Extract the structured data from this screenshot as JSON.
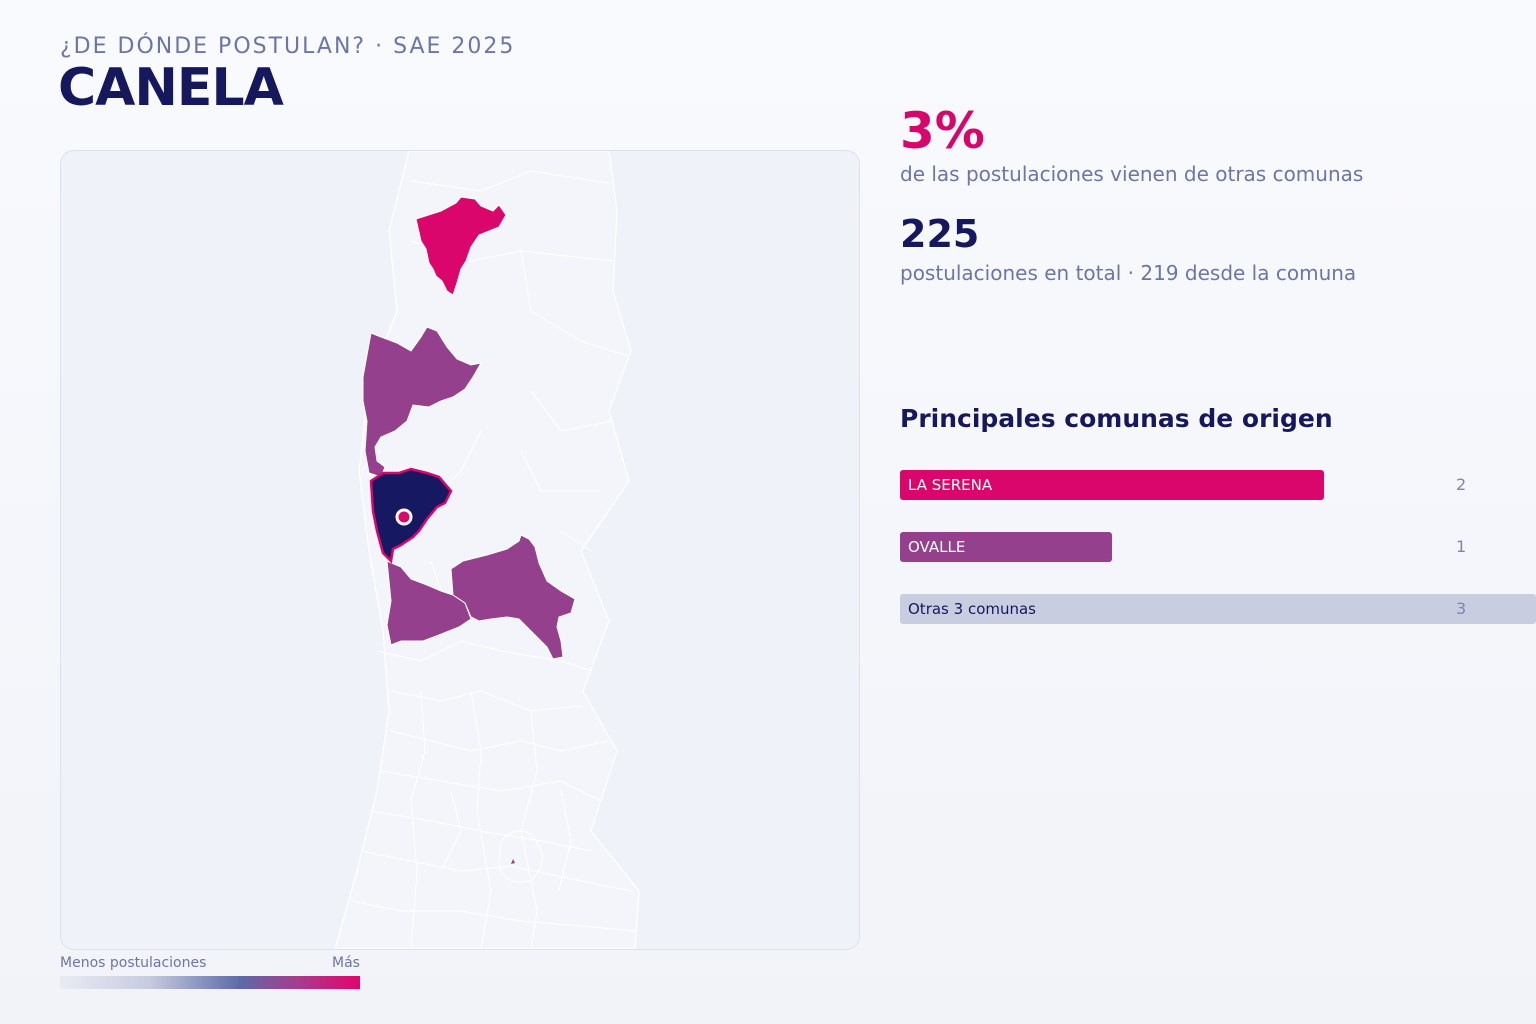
{
  "header": {
    "kicker": "¿DE DÓNDE POSTULAN? · SAE 2025",
    "title": "CANELA"
  },
  "map": {
    "legend": {
      "less": "Menos postulaciones",
      "more": "Más"
    },
    "colors": {
      "base": "#eef1f8",
      "border": "#ffffff",
      "high": "#db066b",
      "mid": "#95408c",
      "selected": "#161861",
      "marker": "#db066b"
    },
    "highlighted": [
      {
        "name": "north-region",
        "level": "high"
      },
      {
        "name": "mid-region",
        "level": "mid"
      },
      {
        "name": "selected-comuna",
        "level": "selected"
      },
      {
        "name": "south-west-region",
        "level": "mid"
      },
      {
        "name": "south-east-region",
        "level": "mid"
      }
    ]
  },
  "stats": {
    "percent": "3%",
    "percent_label": "de las postulaciones vienen de otras comunas",
    "total": "225",
    "total_label": "postulaciones en total · 219 desde la comuna"
  },
  "origins": {
    "title": "Principales comunas de origen",
    "items": [
      {
        "name": "LA SERENA",
        "value": 2,
        "value_label": "2",
        "color": "#db066b",
        "fraction": 0.667
      },
      {
        "name": "OVALLE",
        "value": 1,
        "value_label": "1",
        "color": "#95408c",
        "fraction": 0.333
      },
      {
        "name": "Otras 3 comunas",
        "value": 3,
        "value_label": "3",
        "color": "#c9cde0",
        "fraction": 1.0
      }
    ]
  }
}
